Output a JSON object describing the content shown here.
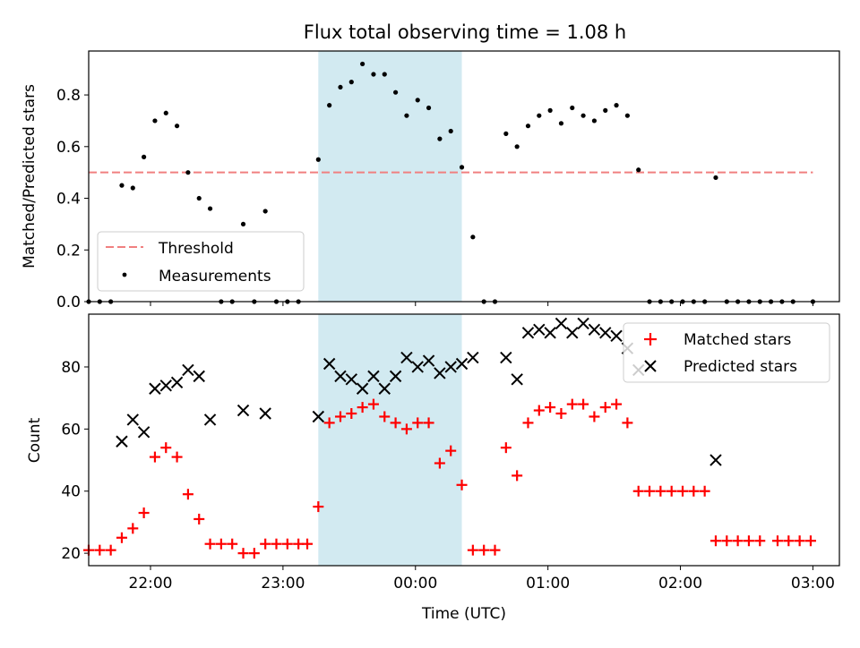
{
  "figure": {
    "title": "Flux total observing time = 1.08 h",
    "xlabel": "Time (UTC)",
    "x_ticks": [
      "22:00",
      "23:00",
      "00:00",
      "01:00",
      "02:00",
      "03:00"
    ]
  },
  "chart_data": [
    {
      "type": "scatter",
      "ylabel": "Matched/Predicted stars",
      "xlim": [
        "21:32",
        "03:12"
      ],
      "ylim": [
        0,
        0.97
      ],
      "y_ticks": [
        "0.0",
        "0.2",
        "0.4",
        "0.6",
        "0.8"
      ],
      "highlight_span": [
        "23:16",
        "00:21"
      ],
      "highlight_color": "#add8e6",
      "legend": {
        "position": "lower-left",
        "entries": [
          "Threshold",
          "Measurements"
        ]
      },
      "threshold": {
        "name": "Threshold",
        "value": 0.5,
        "x_range": [
          "21:32",
          "03:00"
        ],
        "color": "#f08080"
      },
      "measurements": {
        "name": "Measurements",
        "color": "#000000",
        "points": [
          [
            "21:32",
            0.0
          ],
          [
            "21:37",
            0.0
          ],
          [
            "21:42",
            0.0
          ],
          [
            "21:47",
            0.45
          ],
          [
            "21:52",
            0.44
          ],
          [
            "21:57",
            0.56
          ],
          [
            "22:02",
            0.7
          ],
          [
            "22:07",
            0.73
          ],
          [
            "22:12",
            0.68
          ],
          [
            "22:17",
            0.5
          ],
          [
            "22:22",
            0.4
          ],
          [
            "22:27",
            0.36
          ],
          [
            "22:32",
            0.0
          ],
          [
            "22:37",
            0.0
          ],
          [
            "22:42",
            0.3
          ],
          [
            "22:47",
            0.0
          ],
          [
            "22:52",
            0.35
          ],
          [
            "22:57",
            0.0
          ],
          [
            "23:02",
            0.0
          ],
          [
            "23:07",
            0.0
          ],
          [
            "23:16",
            0.55
          ],
          [
            "23:21",
            0.76
          ],
          [
            "23:26",
            0.83
          ],
          [
            "23:31",
            0.85
          ],
          [
            "23:36",
            0.92
          ],
          [
            "23:41",
            0.88
          ],
          [
            "23:46",
            0.88
          ],
          [
            "23:51",
            0.81
          ],
          [
            "23:56",
            0.72
          ],
          [
            "00:01",
            0.78
          ],
          [
            "00:06",
            0.75
          ],
          [
            "00:11",
            0.63
          ],
          [
            "00:16",
            0.66
          ],
          [
            "00:21",
            0.52
          ],
          [
            "00:26",
            0.25
          ],
          [
            "00:31",
            0.0
          ],
          [
            "00:36",
            0.0
          ],
          [
            "00:41",
            0.65
          ],
          [
            "00:46",
            0.6
          ],
          [
            "00:51",
            0.68
          ],
          [
            "00:56",
            0.72
          ],
          [
            "01:01",
            0.74
          ],
          [
            "01:06",
            0.69
          ],
          [
            "01:11",
            0.75
          ],
          [
            "01:16",
            0.72
          ],
          [
            "01:21",
            0.7
          ],
          [
            "01:26",
            0.74
          ],
          [
            "01:31",
            0.76
          ],
          [
            "01:36",
            0.72
          ],
          [
            "01:41",
            0.51
          ],
          [
            "01:46",
            0.0
          ],
          [
            "01:51",
            0.0
          ],
          [
            "01:56",
            0.0
          ],
          [
            "02:01",
            0.0
          ],
          [
            "02:06",
            0.0
          ],
          [
            "02:11",
            0.0
          ],
          [
            "02:16",
            0.48
          ],
          [
            "02:21",
            0.0
          ],
          [
            "02:26",
            0.0
          ],
          [
            "02:31",
            0.0
          ],
          [
            "02:36",
            0.0
          ],
          [
            "02:41",
            0.0
          ],
          [
            "02:46",
            0.0
          ],
          [
            "02:51",
            0.0
          ],
          [
            "03:00",
            0.0
          ]
        ]
      }
    },
    {
      "type": "scatter",
      "ylabel": "Count",
      "xlim": [
        "21:32",
        "03:12"
      ],
      "ylim": [
        16,
        97
      ],
      "y_ticks": [
        "20",
        "40",
        "60",
        "80"
      ],
      "highlight_span": [
        "23:16",
        "00:21"
      ],
      "highlight_color": "#add8e6",
      "legend": {
        "position": "top-right",
        "entries": [
          "Matched stars",
          "Predicted stars"
        ]
      },
      "series": [
        {
          "name": "Matched stars",
          "marker": "plus",
          "color": "#ff0000",
          "points": [
            [
              "21:32",
              21
            ],
            [
              "21:37",
              21
            ],
            [
              "21:42",
              21
            ],
            [
              "21:47",
              25
            ],
            [
              "21:52",
              28
            ],
            [
              "21:57",
              33
            ],
            [
              "22:02",
              51
            ],
            [
              "22:07",
              54
            ],
            [
              "22:12",
              51
            ],
            [
              "22:17",
              39
            ],
            [
              "22:22",
              31
            ],
            [
              "22:27",
              23
            ],
            [
              "22:32",
              23
            ],
            [
              "22:37",
              23
            ],
            [
              "22:42",
              20
            ],
            [
              "22:47",
              20
            ],
            [
              "22:52",
              23
            ],
            [
              "22:57",
              23
            ],
            [
              "23:02",
              23
            ],
            [
              "23:07",
              23
            ],
            [
              "23:11",
              23
            ],
            [
              "23:16",
              35
            ],
            [
              "23:21",
              62
            ],
            [
              "23:26",
              64
            ],
            [
              "23:31",
              65
            ],
            [
              "23:36",
              67
            ],
            [
              "23:41",
              68
            ],
            [
              "23:46",
              64
            ],
            [
              "23:51",
              62
            ],
            [
              "23:56",
              60
            ],
            [
              "00:01",
              62
            ],
            [
              "00:06",
              62
            ],
            [
              "00:11",
              49
            ],
            [
              "00:16",
              53
            ],
            [
              "00:21",
              42
            ],
            [
              "00:26",
              21
            ],
            [
              "00:31",
              21
            ],
            [
              "00:36",
              21
            ],
            [
              "00:41",
              54
            ],
            [
              "00:46",
              45
            ],
            [
              "00:51",
              62
            ],
            [
              "00:56",
              66
            ],
            [
              "01:01",
              67
            ],
            [
              "01:06",
              65
            ],
            [
              "01:11",
              68
            ],
            [
              "01:16",
              68
            ],
            [
              "01:21",
              64
            ],
            [
              "01:26",
              67
            ],
            [
              "01:31",
              68
            ],
            [
              "01:36",
              62
            ],
            [
              "01:41",
              40
            ],
            [
              "01:46",
              40
            ],
            [
              "01:51",
              40
            ],
            [
              "01:56",
              40
            ],
            [
              "02:01",
              40
            ],
            [
              "02:06",
              40
            ],
            [
              "02:11",
              40
            ],
            [
              "02:16",
              24
            ],
            [
              "02:21",
              24
            ],
            [
              "02:26",
              24
            ],
            [
              "02:31",
              24
            ],
            [
              "02:36",
              24
            ],
            [
              "02:44",
              24
            ],
            [
              "02:49",
              24
            ],
            [
              "02:54",
              24
            ],
            [
              "02:59",
              24
            ]
          ]
        },
        {
          "name": "Predicted stars",
          "marker": "x",
          "color": "#000000",
          "points": [
            [
              "21:47",
              56
            ],
            [
              "21:52",
              63
            ],
            [
              "21:57",
              59
            ],
            [
              "22:02",
              73
            ],
            [
              "22:07",
              74
            ],
            [
              "22:12",
              75
            ],
            [
              "22:17",
              79
            ],
            [
              "22:22",
              77
            ],
            [
              "22:27",
              63
            ],
            [
              "22:42",
              66
            ],
            [
              "22:52",
              65
            ],
            [
              "23:16",
              64
            ],
            [
              "23:21",
              81
            ],
            [
              "23:26",
              77
            ],
            [
              "23:31",
              76
            ],
            [
              "23:36",
              73
            ],
            [
              "23:41",
              77
            ],
            [
              "23:46",
              73
            ],
            [
              "23:51",
              77
            ],
            [
              "23:56",
              83
            ],
            [
              "00:01",
              80
            ],
            [
              "00:06",
              82
            ],
            [
              "00:11",
              78
            ],
            [
              "00:16",
              80
            ],
            [
              "00:21",
              81
            ],
            [
              "00:26",
              83
            ],
            [
              "00:41",
              83
            ],
            [
              "00:46",
              76
            ],
            [
              "00:51",
              91
            ],
            [
              "00:56",
              92
            ],
            [
              "01:01",
              91
            ],
            [
              "01:06",
              94
            ],
            [
              "01:11",
              91
            ],
            [
              "01:16",
              94
            ],
            [
              "01:21",
              92
            ],
            [
              "01:26",
              91
            ],
            [
              "01:31",
              90
            ],
            [
              "01:36",
              86
            ],
            [
              "01:41",
              79
            ],
            [
              "02:16",
              50
            ]
          ]
        }
      ]
    }
  ]
}
